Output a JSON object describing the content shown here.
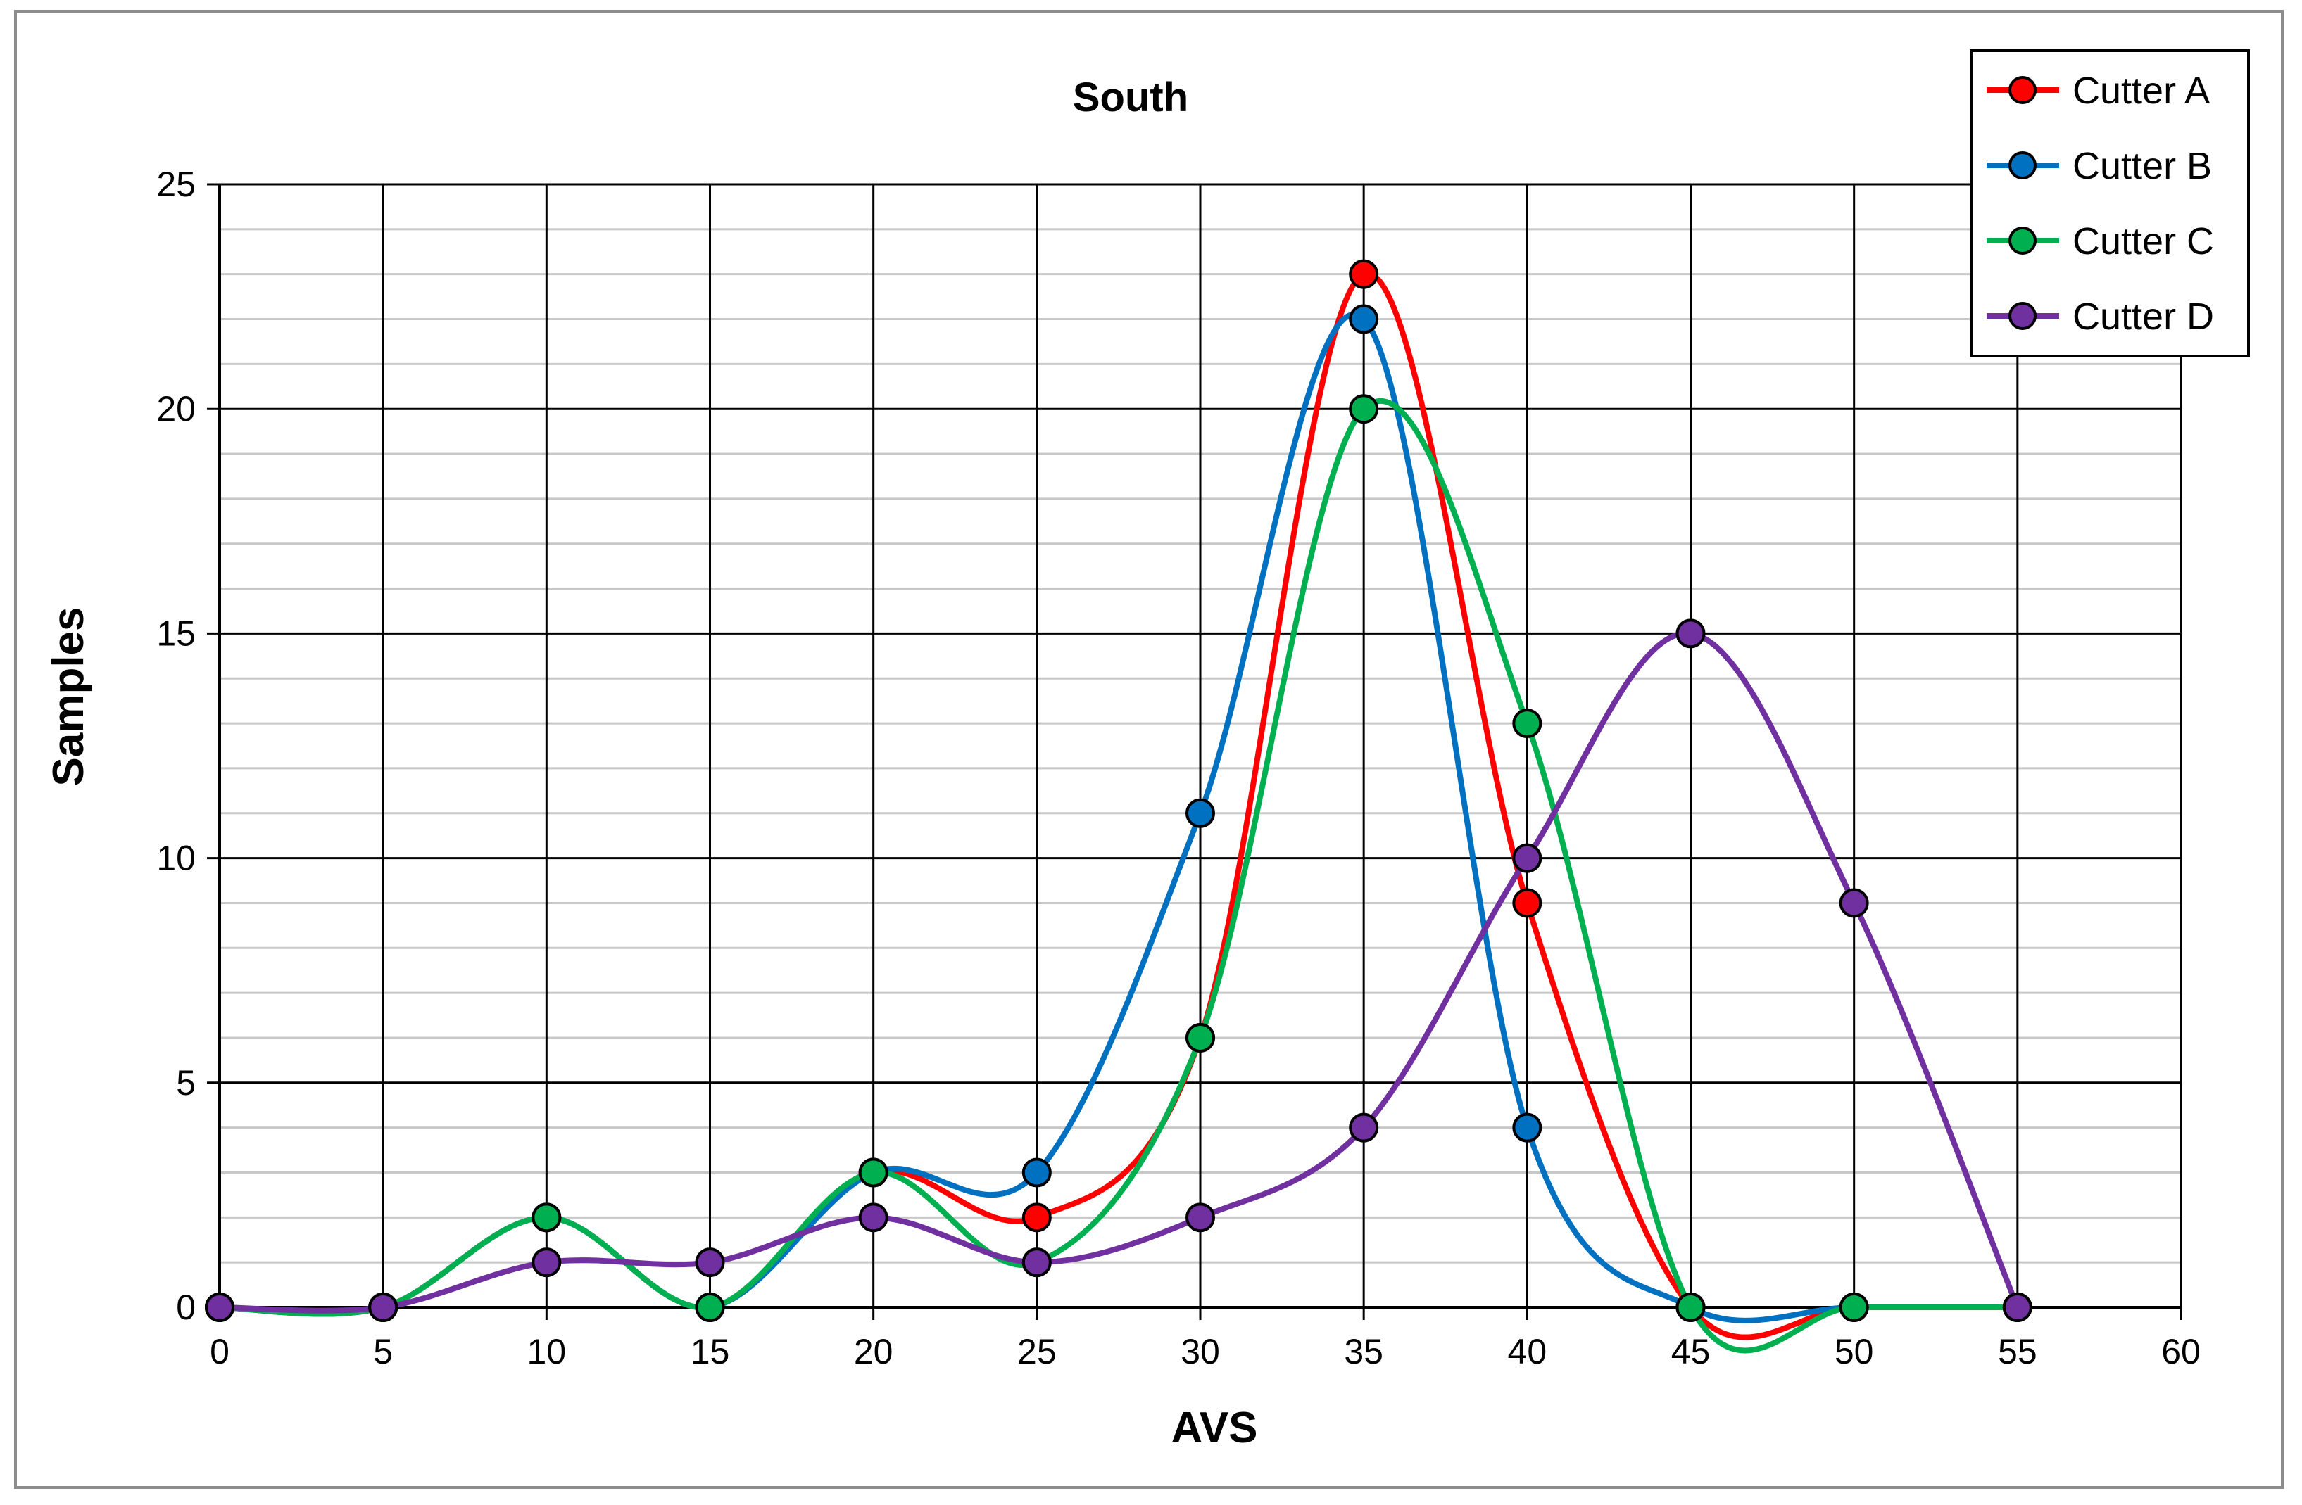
{
  "chart_data": {
    "type": "line",
    "title": "South",
    "xlabel": "AVS",
    "ylabel": "Samples",
    "xlim": [
      0,
      60
    ],
    "ylim": [
      0,
      25
    ],
    "x_ticks": [
      "0",
      "5",
      "10",
      "15",
      "20",
      "25",
      "30",
      "35",
      "40",
      "45",
      "50",
      "55",
      "60"
    ],
    "y_ticks": [
      "0",
      "5",
      "10",
      "15",
      "20",
      "25"
    ],
    "grid": true,
    "smooth": true,
    "legend_position": "top-right",
    "series": [
      {
        "name": "Cutter A",
        "color": "#ff0000",
        "points": [
          [
            0,
            0
          ],
          [
            5,
            0
          ],
          [
            10,
            2
          ],
          [
            15,
            0
          ],
          [
            20,
            3
          ],
          [
            25,
            2
          ],
          [
            30,
            6
          ],
          [
            35,
            23
          ],
          [
            40,
            9
          ],
          [
            45,
            0
          ],
          [
            50,
            0
          ],
          [
            55,
            0
          ]
        ]
      },
      {
        "name": "Cutter B",
        "color": "#0070c0",
        "points": [
          [
            0,
            0
          ],
          [
            5,
            0
          ],
          [
            10,
            2
          ],
          [
            15,
            0
          ],
          [
            20,
            3
          ],
          [
            25,
            3
          ],
          [
            30,
            11
          ],
          [
            35,
            22
          ],
          [
            40,
            4
          ],
          [
            45,
            0
          ],
          [
            50,
            0
          ],
          [
            55,
            0
          ]
        ]
      },
      {
        "name": "Cutter C",
        "color": "#00b050",
        "points": [
          [
            0,
            0
          ],
          [
            5,
            0
          ],
          [
            10,
            2
          ],
          [
            15,
            0
          ],
          [
            20,
            3
          ],
          [
            25,
            1
          ],
          [
            30,
            6
          ],
          [
            35,
            20
          ],
          [
            40,
            13
          ],
          [
            45,
            0
          ],
          [
            50,
            0
          ],
          [
            55,
            0
          ]
        ]
      },
      {
        "name": "Cutter D",
        "color": "#7030a0",
        "points": [
          [
            0,
            0
          ],
          [
            5,
            0
          ],
          [
            10,
            1
          ],
          [
            15,
            1
          ],
          [
            20,
            2
          ],
          [
            25,
            1
          ],
          [
            30,
            2
          ],
          [
            35,
            4
          ],
          [
            40,
            10
          ],
          [
            45,
            15
          ],
          [
            50,
            9
          ],
          [
            55,
            0
          ]
        ]
      }
    ]
  }
}
